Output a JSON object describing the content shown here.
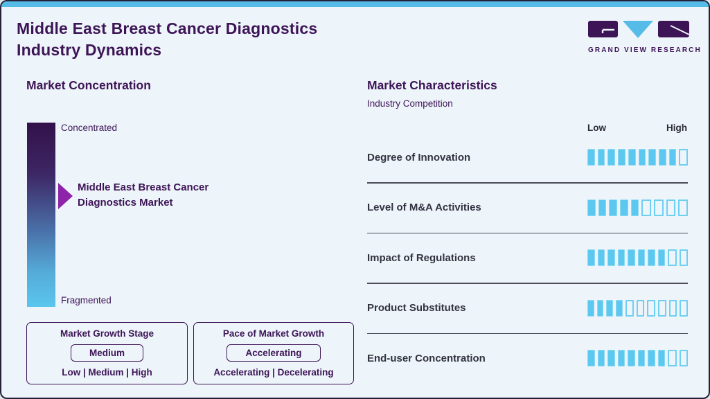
{
  "page": {
    "title_line1": "Middle East Breast Cancer Diagnostics",
    "title_line2": "Industry Dynamics",
    "colors": {
      "background": "#edf4fa",
      "accent_blue": "#55bce8",
      "dark_purple": "#3d1556",
      "arrow_purple": "#8e24aa",
      "segment_blue": "#5cc8ef",
      "divider_gray": "#4b4b55",
      "label_dark": "#32323e"
    }
  },
  "logo": {
    "text": "GRAND VIEW RESEARCH",
    "icon": "gvr-logo"
  },
  "market_concentration": {
    "heading": "Market Concentration",
    "top_label": "Concentrated",
    "bottom_label": "Fragmented",
    "pointer_line1": "Middle East Breast Cancer",
    "pointer_line2": "Diagnostics Market"
  },
  "growth_boxes": [
    {
      "title": "Market Growth Stage",
      "value": "Medium",
      "options": "Low | Medium | High"
    },
    {
      "title": "Pace of Market Growth",
      "value": "Accelerating",
      "options": "Accelerating | Decelerating"
    }
  ],
  "market_characteristics": {
    "heading": "Market Characteristics",
    "subheading": "Industry Competition",
    "scale_low": "Low",
    "scale_high": "High",
    "rows": [
      {
        "label": "Degree of Innovation",
        "filled": 9,
        "total": 10
      },
      {
        "label": "Level of M&A Activities",
        "filled": 5,
        "total": 9
      },
      {
        "label": "Impact of Regulations",
        "filled": 8,
        "total": 10
      },
      {
        "label": "Product Substitutes",
        "filled": 4,
        "total": 10
      },
      {
        "label": "End-user Concentration",
        "filled": 8,
        "total": 10
      }
    ]
  },
  "chart_data": {
    "type": "bar",
    "title": "Middle East Breast Cancer Diagnostics Industry Dynamics",
    "subtitle": "Industry Competition",
    "categories": [
      "Degree of Innovation",
      "Level of M&A Activities",
      "Impact of Regulations",
      "Product Substitutes",
      "End-user Concentration"
    ],
    "values": [
      9,
      5,
      8,
      4,
      8
    ],
    "segment_totals": [
      10,
      9,
      10,
      10,
      10
    ],
    "xlabel": "",
    "ylabel": "",
    "scale_labels": [
      "Low",
      "High"
    ],
    "legend_position": "none",
    "grid": false,
    "notes": "Each row is a segmented rating bar; filled segments out of total indicate intensity from Low to High. Companion gauge: market concentration scale from Concentrated to Fragmented with pointer at Middle East Breast Cancer Diagnostics Market; Market Growth Stage = Medium (of Low|Medium|High); Pace of Market Growth = Accelerating (of Accelerating|Decelerating)."
  }
}
